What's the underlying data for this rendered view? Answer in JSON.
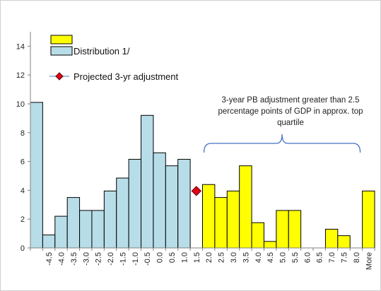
{
  "chart_data": {
    "type": "bar",
    "title": "",
    "xlabel": "",
    "ylabel": "",
    "ylim": [
      0,
      15
    ],
    "yticks": [
      0,
      2,
      4,
      6,
      8,
      10,
      12,
      14
    ],
    "grid": false,
    "categories": [
      "",
      "-4.5",
      "-4.0",
      "-3.5",
      "-3.0",
      "-2.5",
      "-2.0",
      "-1.5",
      "-1.0",
      "-0.5",
      "0.0",
      "0.5",
      "1.0",
      "1.5",
      "2.0",
      "2.5",
      "3.0",
      "3.5",
      "4.0",
      "4.5",
      "5.0",
      "5.5",
      "6.0",
      "6.5",
      "7.0",
      "7.5",
      "8.0",
      "More"
    ],
    "series": [
      {
        "name": "Distribution 1/",
        "color": "#b7dde8",
        "values": [
          10.1,
          0.9,
          2.2,
          3.5,
          2.6,
          2.6,
          3.95,
          4.85,
          6.15,
          9.2,
          6.6,
          5.7,
          6.15,
          0,
          0,
          0,
          0,
          0,
          0,
          0,
          0,
          0,
          0,
          0,
          0,
          0,
          0,
          0
        ]
      },
      {
        "name": "",
        "color": "#ffff00",
        "values": [
          0,
          0,
          0,
          0,
          0,
          0,
          0,
          0,
          0,
          0,
          0,
          0,
          0,
          0,
          4.4,
          3.5,
          3.95,
          5.7,
          1.75,
          0.45,
          2.6,
          2.6,
          0,
          0,
          1.3,
          0.85,
          0,
          3.95
        ]
      },
      {
        "name": "Projected 3-yr adjustment",
        "type": "scatter",
        "color": "#e3001b",
        "marker": "diamond",
        "points": [
          {
            "x": "1.5",
            "y": 3.95
          }
        ]
      }
    ],
    "legend": {
      "placement": "top-left",
      "entries": [
        {
          "label": "",
          "swatch": "yellow"
        },
        {
          "label": "Distribution 1/",
          "swatch": "lightblue"
        },
        {
          "label": "Projected 3-yr adjustment",
          "swatch": "diamond"
        }
      ]
    },
    "annotation": {
      "lines": [
        "3-year PB adjustment greater than 2.5",
        "percentage points of GDP in approx. top",
        "quartile"
      ],
      "brace_from": "2.0",
      "brace_to": "8.0"
    }
  }
}
